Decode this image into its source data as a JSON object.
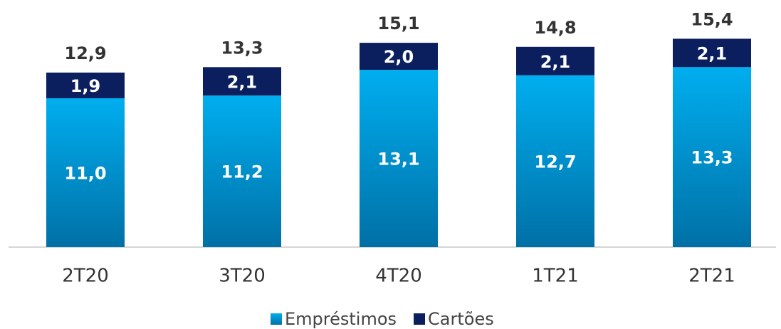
{
  "chart_data": {
    "type": "stacked_bar",
    "categories": [
      "2T20",
      "3T20",
      "4T20",
      "1T21",
      "2T21"
    ],
    "series": [
      {
        "name": "Empréstimos",
        "color": "#00aeef",
        "values": [
          11.0,
          11.2,
          13.1,
          12.7,
          13.3
        ],
        "value_labels": [
          "11,0",
          "11,2",
          "13,1",
          "12,7",
          "13,3"
        ]
      },
      {
        "name": "Cartões",
        "color": "#0b1f5e",
        "values": [
          1.9,
          2.1,
          2.0,
          2.1,
          2.1
        ],
        "value_labels": [
          "1,9",
          "2,1",
          "2,0",
          "2,1",
          "2,1"
        ]
      }
    ],
    "totals": [
      12.9,
      13.3,
      15.1,
      14.8,
      15.4
    ],
    "total_labels": [
      "12,9",
      "13,3",
      "15,1",
      "14,8",
      "15,4"
    ]
  }
}
